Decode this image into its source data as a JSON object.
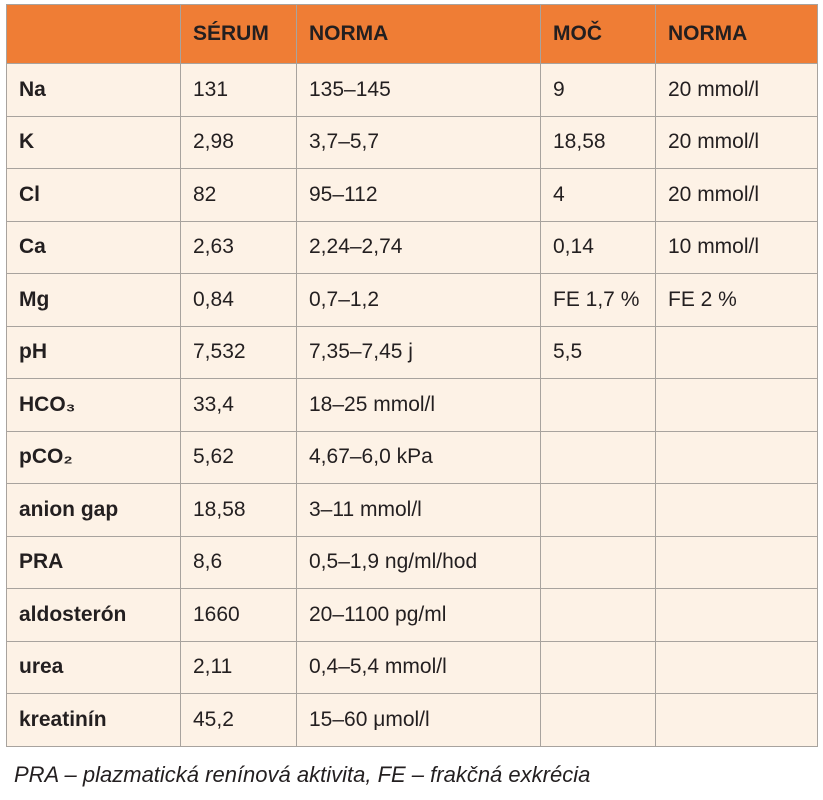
{
  "table": {
    "header": [
      "SÉRUM",
      "NORMA",
      "MOČ",
      "NORMA"
    ],
    "rows": [
      [
        "Na",
        "131",
        "135–145",
        "9",
        "20 mmol/l"
      ],
      [
        "K",
        "2,98",
        "3,7–5,7",
        "18,58",
        "20 mmol/l"
      ],
      [
        "Cl",
        "82",
        "95–112",
        "4",
        "20 mmol/l"
      ],
      [
        "Ca",
        "2,63",
        "2,24–2,74",
        "0,14",
        "10 mmol/l"
      ],
      [
        "Mg",
        "0,84",
        "0,7–1,2",
        "FE 1,7 %",
        "FE 2 %"
      ],
      [
        "pH",
        "7,532",
        "7,35–7,45 j",
        "5,5"
      ],
      [
        "HCO₃",
        "33,4",
        "18–25 mmol/l"
      ],
      [
        "pCO₂",
        "5,62",
        "4,67–6,0 kPa"
      ],
      [
        "anion gap",
        "18,58",
        "3–11 mmol/l"
      ],
      [
        "PRA",
        "8,6",
        "0,5–1,9 ng/ml/hod"
      ],
      [
        "aldosterón",
        "1660",
        "20–1100 pg/ml"
      ],
      [
        "urea",
        "2,11",
        "0,4–5,4 mmol/l"
      ],
      [
        "kreatinín",
        "45,2",
        "15–60 μmol/l"
      ]
    ]
  },
  "caption": "PRA – plazmatická renínová aktivita, FE – frakčná exkrécia"
}
